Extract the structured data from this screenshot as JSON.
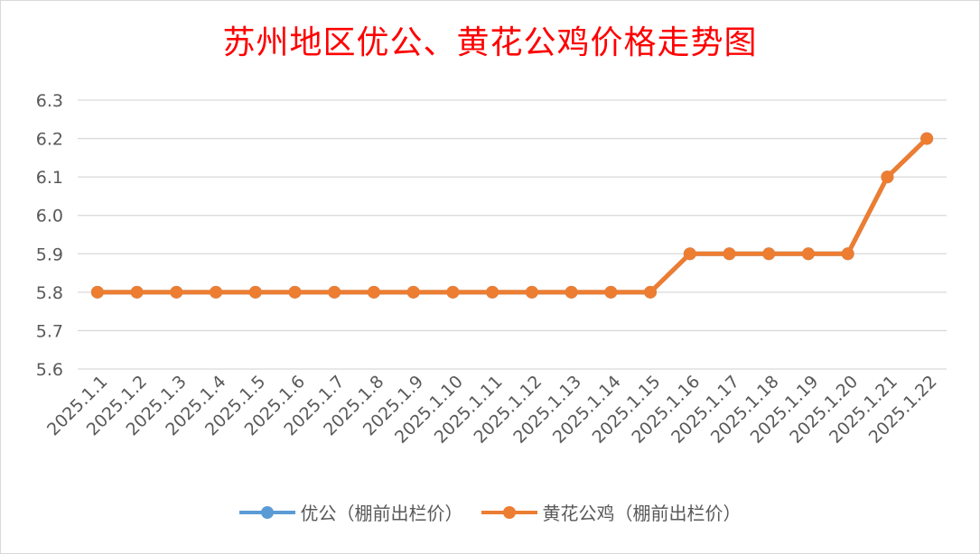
{
  "chart_data": {
    "type": "line",
    "title": "苏州地区优公、黄花公鸡价格走势图",
    "xlabel": "",
    "ylabel": "",
    "categories": [
      "2025.1.1",
      "2025.1.2",
      "2025.1.3",
      "2025.1.4",
      "2025.1.5",
      "2025.1.6",
      "2025.1.7",
      "2025.1.8",
      "2025.1.9",
      "2025.1.10",
      "2025.1.11",
      "2025.1.12",
      "2025.1.13",
      "2025.1.14",
      "2025.1.15",
      "2025.1.16",
      "2025.1.17",
      "2025.1.18",
      "2025.1.19",
      "2025.1.20",
      "2025.1.21",
      "2025.1.22"
    ],
    "ylim": [
      5.6,
      6.3
    ],
    "yticks": [
      "5.6",
      "5.7",
      "5.8",
      "5.9",
      "6.0",
      "6.1",
      "6.2",
      "6.3"
    ],
    "grid": true,
    "legend_position": "bottom",
    "series": [
      {
        "name": "优公（棚前出栏价）",
        "color": "#5b9bd5",
        "values": [
          5.8,
          5.8,
          5.8,
          5.8,
          5.8,
          5.8,
          5.8,
          5.8,
          5.8,
          5.8,
          5.8,
          5.8,
          5.8,
          5.8,
          5.8,
          5.9,
          5.9,
          5.9,
          5.9,
          5.9,
          6.1,
          6.2
        ]
      },
      {
        "name": "黄花公鸡（棚前出栏价）",
        "color": "#ed7d31",
        "values": [
          5.8,
          5.8,
          5.8,
          5.8,
          5.8,
          5.8,
          5.8,
          5.8,
          5.8,
          5.8,
          5.8,
          5.8,
          5.8,
          5.8,
          5.8,
          5.9,
          5.9,
          5.9,
          5.9,
          5.9,
          6.1,
          6.2
        ]
      }
    ]
  }
}
